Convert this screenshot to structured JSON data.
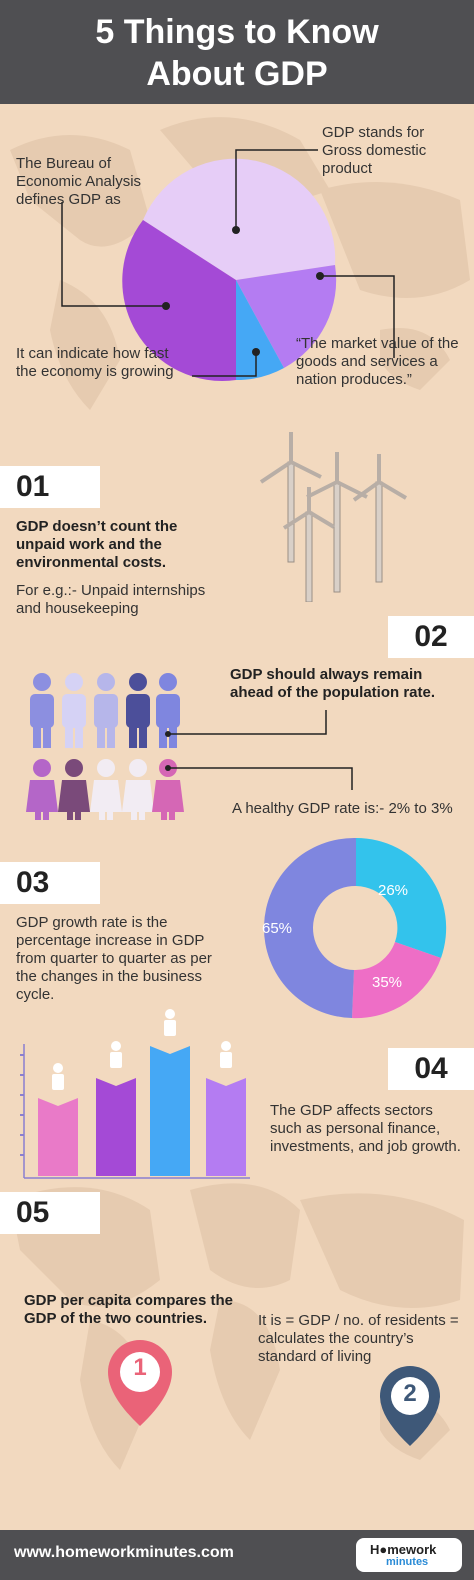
{
  "header": {
    "title_line1": "5 Things to Know",
    "title_line2": "About GDP"
  },
  "intro": {
    "bea_text": "The Bureau of Economic Analysis defines GDP as",
    "stands_for": "GDP stands for Gross domestic product",
    "indicate": "It can indicate how fast the economy is growing",
    "quote": "“The market value of the goods and services a nation produces.”"
  },
  "s1": {
    "num": "01",
    "heading": "GDP doesn’t count the unpaid work and the environmental costs.",
    "example": "For e.g.:- Unpaid internships and housekeeping"
  },
  "s2": {
    "num": "02",
    "heading": "GDP should always remain ahead of the population rate.",
    "healthy": "A healthy GDP rate is:- 2% to 3%"
  },
  "s3": {
    "num": "03",
    "body": "GDP growth rate is the percentage increase in GDP from quarter to quarter as per the changes in the business cycle.",
    "donut": [
      {
        "label": "26%",
        "color": "#33c3ec"
      },
      {
        "label": "35%",
        "color": "#ee6ec6"
      },
      {
        "label": "65%",
        "color": "#7f86df"
      }
    ]
  },
  "s4": {
    "num": "04",
    "body": "The GDP affects sectors such as personal finance, investments, and job growth."
  },
  "s5": {
    "num": "05",
    "heading": "GDP per capita compares the GDP of the two countries.",
    "formula": "It is = GDP / no. of residents = calculates the country’s standard of living",
    "pin1": "1",
    "pin2": "2"
  },
  "footer": {
    "url": "www.homeworkminutes.com",
    "logo_top": "H●mework",
    "logo_bottom": "minutes"
  },
  "colors": {
    "dark": "#4f4f52",
    "bg": "#f2d9bf",
    "lavender": "#e6cdf7",
    "purple": "#a44ad6",
    "violet": "#b47cf2",
    "blue": "#45a8f5",
    "pink": "#e97ac8",
    "pin1": "#ea6378",
    "pin2": "#3e5878"
  }
}
